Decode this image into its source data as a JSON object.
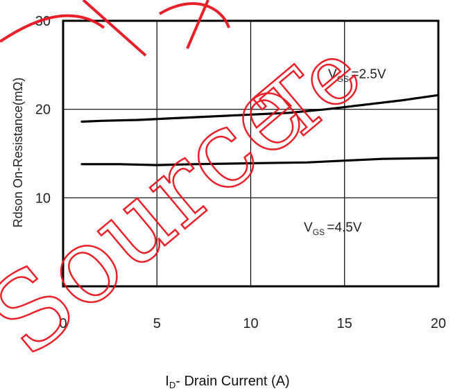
{
  "chart_data": {
    "type": "line",
    "title": "",
    "xlabel": "- Drain Current (A)",
    "xlabel_symbol": "I",
    "xlabel_sub": "D",
    "ylabel": "Rdson On-Resistance(mΩ)",
    "xlim": [
      0,
      20
    ],
    "ylim": [
      0,
      30
    ],
    "xticks": [
      0,
      5,
      10,
      15,
      20
    ],
    "yticks": [
      10,
      20,
      30
    ],
    "grid": true,
    "series": [
      {
        "name": "=2.5V",
        "label_symbol": "V",
        "label_sub": "GS",
        "x": [
          1,
          2,
          4,
          6,
          8,
          10,
          12,
          14,
          16,
          18,
          20
        ],
        "y": [
          18.6,
          18.7,
          18.8,
          19.0,
          19.2,
          19.4,
          19.6,
          20.0,
          20.5,
          21.0,
          21.6
        ]
      },
      {
        "name": "=4.5V",
        "label_symbol": "V",
        "label_sub": "GS",
        "x": [
          1,
          3,
          5,
          7,
          10,
          13,
          15,
          17,
          20
        ],
        "y": [
          13.8,
          13.8,
          13.7,
          13.8,
          13.9,
          14.0,
          14.2,
          14.4,
          14.5
        ]
      }
    ],
    "colors": {
      "line": "#000000",
      "grid": "#000000",
      "watermark": "#e8141e"
    }
  },
  "watermark": {
    "text": "SourceTech"
  }
}
